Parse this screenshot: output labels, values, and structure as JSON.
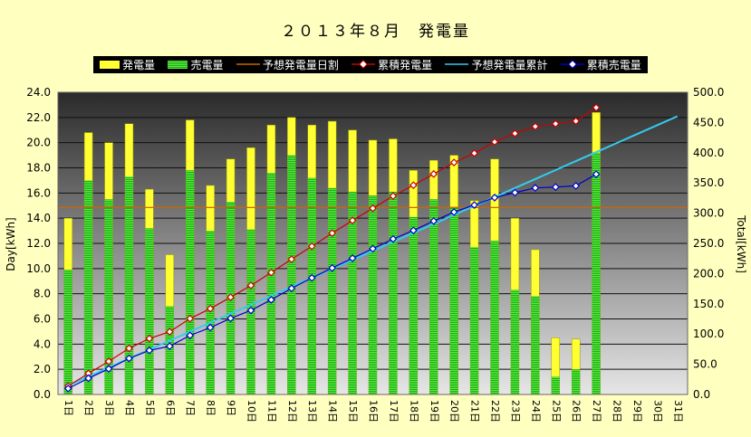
{
  "title": "２０１３年８月　発電量",
  "legend": [
    {
      "name": "発電量",
      "kind": "box",
      "color": "#ffff33"
    },
    {
      "name": "売電量",
      "kind": "box-striped",
      "color": "#33cc33"
    },
    {
      "name": "予想発電量日割",
      "kind": "line",
      "color": "#cc6600"
    },
    {
      "name": "累積発電量",
      "kind": "line-marker",
      "color": "#cc0000"
    },
    {
      "name": "予想発電量累計",
      "kind": "line",
      "color": "#33ccee"
    },
    {
      "name": "累積売電量",
      "kind": "line-marker",
      "color": "#0000cc"
    }
  ],
  "chart_data": {
    "type": "bar",
    "title": "２０１３年８月　発電量",
    "xlabel": "",
    "ylabel": "Day[kWh]",
    "y2label": "Total[kWh]",
    "ylim": [
      0,
      24
    ],
    "y2lim": [
      0,
      500
    ],
    "yticks": [
      "0.0",
      "2.0",
      "4.0",
      "6.0",
      "8.0",
      "10.0",
      "12.0",
      "14.0",
      "16.0",
      "18.0",
      "20.0",
      "22.0",
      "24.0"
    ],
    "y2ticks": [
      "0.0",
      "50.0",
      "100.0",
      "150.0",
      "200.0",
      "250.0",
      "300.0",
      "350.0",
      "400.0",
      "450.0",
      "500.0"
    ],
    "grid": true,
    "legend_position": "top",
    "categories": [
      "1日",
      "2日",
      "3日",
      "4日",
      "5日",
      "6日",
      "7日",
      "8日",
      "9日",
      "10日",
      "11日",
      "12日",
      "13日",
      "14日",
      "15日",
      "16日",
      "17日",
      "18日",
      "19日",
      "20日",
      "21日",
      "22日",
      "23日",
      "24日",
      "25日",
      "26日",
      "27日",
      "28日",
      "29日",
      "30日",
      "31日"
    ],
    "series": [
      {
        "name": "発電量",
        "axis": "left",
        "type": "bar",
        "color": "#ffff33",
        "values": [
          14.0,
          20.8,
          20.0,
          21.5,
          16.3,
          11.1,
          21.8,
          16.6,
          18.7,
          19.6,
          21.4,
          22.0,
          21.4,
          21.7,
          21.0,
          20.2,
          20.3,
          17.8,
          18.6,
          19.0,
          15.4,
          18.7,
          14.0,
          11.5,
          4.5,
          4.4,
          22.4,
          null,
          null,
          null,
          null
        ]
      },
      {
        "name": "売電量",
        "axis": "left",
        "type": "bar",
        "color": "#33cc33",
        "values": [
          9.9,
          17.0,
          15.5,
          17.3,
          13.2,
          7.0,
          17.8,
          13.0,
          15.3,
          13.1,
          17.6,
          19.0,
          17.2,
          16.4,
          16.1,
          15.8,
          16.1,
          14.1,
          15.5,
          14.9,
          11.7,
          12.2,
          8.3,
          7.8,
          1.4,
          2.0,
          19.2,
          null,
          null,
          null,
          null
        ]
      },
      {
        "name": "予想発電量日割",
        "axis": "left",
        "type": "line",
        "color": "#cc6600",
        "values": [
          14.85,
          14.85,
          14.85,
          14.85,
          14.85,
          14.85,
          14.85,
          14.85,
          14.85,
          14.85,
          14.85,
          14.85,
          14.85,
          14.85,
          14.85,
          14.85,
          14.85,
          14.85,
          14.85,
          14.85,
          14.85,
          14.85,
          14.85,
          14.85,
          14.85,
          14.85,
          14.85,
          14.85,
          14.85,
          14.85,
          14.85
        ]
      },
      {
        "name": "累積発電量",
        "axis": "right",
        "type": "line",
        "color": "#cc0000",
        "values": [
          14.0,
          34.8,
          54.8,
          76.3,
          92.6,
          103.7,
          125.5,
          142.1,
          160.8,
          180.4,
          201.8,
          223.8,
          245.2,
          266.9,
          287.9,
          308.1,
          328.4,
          346.2,
          364.8,
          383.8,
          399.2,
          417.9,
          431.9,
          443.4,
          447.9,
          452.3,
          474.7,
          null,
          null,
          null,
          null
        ]
      },
      {
        "name": "予想発電量累計",
        "axis": "right",
        "type": "line",
        "color": "#33ccee",
        "values": [
          14.85,
          29.7,
          44.55,
          59.4,
          74.25,
          89.1,
          103.95,
          118.8,
          133.65,
          148.5,
          163.35,
          178.2,
          193.05,
          207.9,
          222.75,
          237.6,
          252.45,
          267.3,
          282.15,
          297.0,
          311.85,
          326.7,
          341.55,
          356.4,
          371.25,
          386.1,
          400.95,
          415.8,
          430.65,
          445.5,
          460.35
        ]
      },
      {
        "name": "累積売電量",
        "axis": "right",
        "type": "line",
        "color": "#0000cc",
        "values": [
          9.9,
          26.9,
          42.4,
          59.7,
          72.9,
          79.9,
          97.7,
          110.7,
          126.0,
          139.1,
          156.7,
          175.7,
          192.9,
          209.3,
          225.4,
          241.2,
          257.3,
          271.4,
          286.9,
          301.8,
          313.5,
          325.7,
          334.0,
          341.8,
          343.2,
          345.2,
          364.4,
          null,
          null,
          null,
          null
        ]
      }
    ]
  }
}
